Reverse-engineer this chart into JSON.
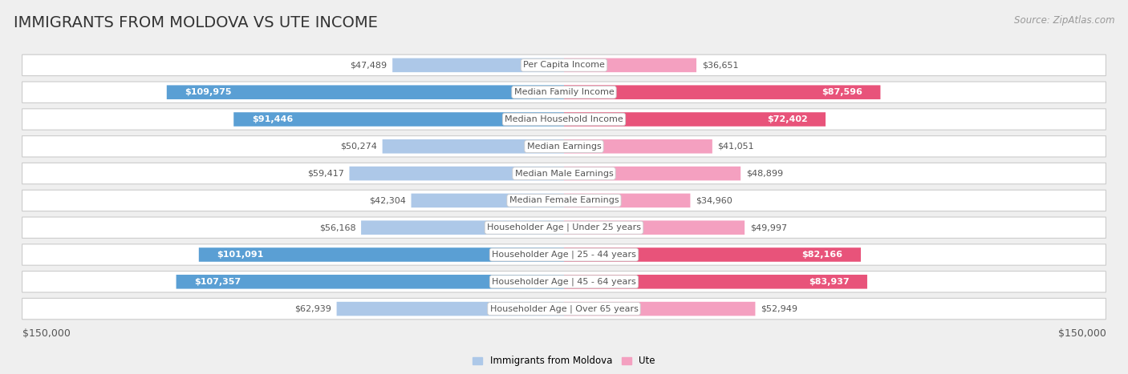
{
  "title": "IMMIGRANTS FROM MOLDOVA VS UTE INCOME",
  "source": "Source: ZipAtlas.com",
  "categories": [
    "Per Capita Income",
    "Median Family Income",
    "Median Household Income",
    "Median Earnings",
    "Median Male Earnings",
    "Median Female Earnings",
    "Householder Age | Under 25 years",
    "Householder Age | 25 - 44 years",
    "Householder Age | 45 - 64 years",
    "Householder Age | Over 65 years"
  ],
  "moldova_values": [
    47489,
    109975,
    91446,
    50274,
    59417,
    42304,
    56168,
    101091,
    107357,
    62939
  ],
  "ute_values": [
    36651,
    87596,
    72402,
    41051,
    48899,
    34960,
    49997,
    82166,
    83937,
    52949
  ],
  "moldova_labels": [
    "$47,489",
    "$109,975",
    "$91,446",
    "$50,274",
    "$59,417",
    "$42,304",
    "$56,168",
    "$101,091",
    "$107,357",
    "$62,939"
  ],
  "ute_labels": [
    "$36,651",
    "$87,596",
    "$72,402",
    "$41,051",
    "$48,899",
    "$34,960",
    "$49,997",
    "$82,166",
    "$83,937",
    "$52,949"
  ],
  "max_value": 150000,
  "moldova_light_color": "#adc8e8",
  "moldova_dark_color": "#5a9fd4",
  "ute_light_color": "#f4a0c0",
  "ute_dark_color": "#e8537a",
  "background_color": "#efefef",
  "row_bg_color": "#ffffff",
  "legend_moldova": "Immigrants from Moldova",
  "legend_ute": "Ute",
  "x_label_left": "$150,000",
  "x_label_right": "$150,000",
  "title_fontsize": 14,
  "source_fontsize": 8.5,
  "bar_label_fontsize": 8,
  "category_fontsize": 8,
  "axis_fontsize": 9,
  "dark_threshold": 65000
}
